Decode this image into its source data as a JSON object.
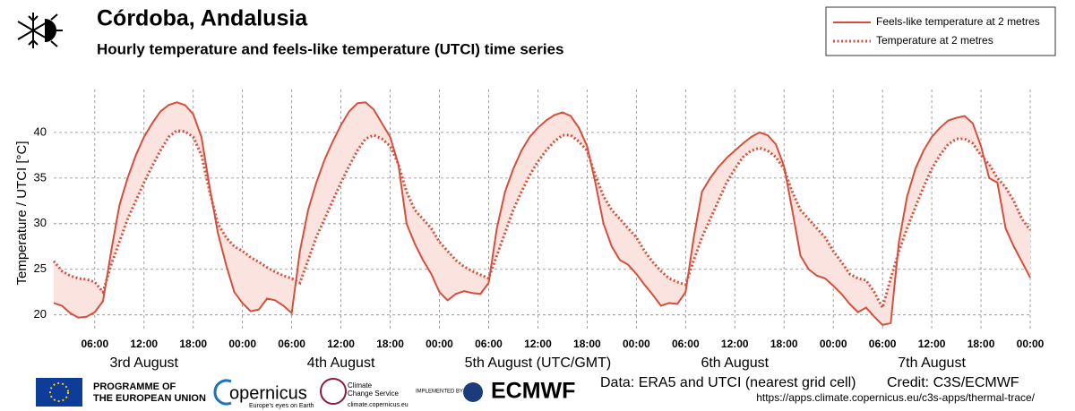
{
  "chart_data": {
    "type": "line",
    "title": "Córdoba, Andalusia",
    "subtitle": "Hourly  temperature and feels-like temperature (UTCI) time series",
    "ylabel": "Temperature / UTCI  [°C]",
    "x": [
      1,
      2,
      3,
      4,
      5,
      6,
      7,
      8,
      9,
      10,
      11,
      12,
      13,
      14,
      15,
      16,
      17,
      18,
      19,
      20,
      21,
      22,
      23,
      24,
      25,
      26,
      27,
      28,
      29,
      30,
      31,
      32,
      33,
      34,
      35,
      36,
      37,
      38,
      39,
      40,
      41,
      42,
      43,
      44,
      45,
      46,
      47,
      48,
      49,
      50,
      51,
      52,
      53,
      54,
      55,
      56,
      57,
      58,
      59,
      60,
      61,
      62,
      63,
      64,
      65,
      66,
      67,
      68,
      69,
      70,
      71,
      72,
      73,
      74,
      75,
      76,
      77,
      78,
      79,
      80,
      81,
      82,
      83,
      84,
      85,
      86,
      87,
      88,
      89,
      90,
      91,
      92,
      93,
      94,
      95,
      96,
      97,
      98,
      99,
      100,
      101,
      102,
      103,
      104,
      105,
      106,
      107,
      108,
      109,
      110,
      111,
      112,
      113,
      114,
      115,
      116,
      117,
      118,
      119,
      120
    ],
    "series": [
      {
        "name": "Feels-like temperature at 2 metres",
        "color": "#d4503c",
        "style": "solid",
        "values": [
          21.3,
          21.0,
          20.2,
          19.7,
          19.8,
          20.3,
          21.5,
          27,
          32,
          35,
          37.5,
          39.5,
          41,
          42.3,
          43,
          43.3,
          43,
          42,
          39.5,
          34,
          29,
          25.5,
          22.5,
          21.3,
          20.4,
          20.6,
          21.8,
          21.6,
          21.0,
          20.2,
          27,
          31.5,
          34.5,
          37,
          39,
          40.8,
          42.3,
          43.2,
          43.3,
          42.5,
          41,
          39.5,
          36.5,
          30,
          27.8,
          26,
          24.5,
          22.5,
          21.6,
          22.3,
          22.6,
          22.4,
          22.3,
          23.5,
          29.5,
          33.5,
          36,
          38,
          39.5,
          40.5,
          41.3,
          41.9,
          42.2,
          41.8,
          40.5,
          38.5,
          34.5,
          30,
          27.5,
          26,
          25.5,
          24.5,
          23.3,
          22.2,
          21,
          21.3,
          21.2,
          22.5,
          28.5,
          33.5,
          35,
          36.2,
          37.2,
          38,
          38.8,
          39.5,
          40,
          39.7,
          38.7,
          36.3,
          31.5,
          26.5,
          25,
          24.3,
          24,
          23.2,
          22.3,
          21.2,
          20.3,
          20.8,
          19.8,
          18.9,
          19.1,
          28,
          33,
          36,
          38,
          39.5,
          40.5,
          41.3,
          41.6,
          41.8,
          41,
          38.5,
          35,
          34.5,
          29.5,
          27.5,
          25.8,
          24.1
        ]
      },
      {
        "name": "Temperature at 2 metres",
        "color": "#d4503c",
        "style": "dotted",
        "values": [
          25.9,
          24.8,
          24.3,
          24.0,
          23.9,
          23.6,
          22.5,
          25.5,
          28,
          30.5,
          32.5,
          34.5,
          36.3,
          38,
          39.5,
          40.2,
          40.1,
          39.5,
          37.5,
          33.5,
          30,
          28.5,
          27.5,
          27,
          26.3,
          25.8,
          25.2,
          24.7,
          24.3,
          24,
          23.5,
          26,
          28.5,
          30.5,
          32.5,
          34.5,
          36.3,
          38,
          39.3,
          39.7,
          39.3,
          38.5,
          36.5,
          33.5,
          31.5,
          30.5,
          29.5,
          28,
          27,
          26,
          25.3,
          24.8,
          24.4,
          24,
          26.5,
          29,
          31.5,
          33.5,
          35.3,
          36.8,
          38,
          39,
          39.7,
          39.7,
          39,
          38,
          35.3,
          33,
          31.5,
          30.5,
          29.5,
          28.5,
          27,
          25.8,
          24.8,
          24,
          23.6,
          23.3,
          26,
          28.5,
          30.5,
          32.5,
          34.5,
          36,
          37.3,
          38,
          38.3,
          38,
          37.3,
          36,
          33.5,
          31.5,
          30.5,
          29.5,
          28.5,
          27,
          25.8,
          24.5,
          24,
          23.8,
          22.5,
          20.8,
          24,
          27,
          29.5,
          31.8,
          34,
          36,
          37.5,
          38.7,
          39.3,
          39.3,
          38.8,
          37.5,
          36.5,
          35,
          34,
          32.5,
          30.5,
          29.3
        ]
      }
    ],
    "fill_color": "#fbe3df",
    "xlim": [
      1,
      120
    ],
    "xticks": [
      {
        "value": 6,
        "label": "06:00"
      },
      {
        "value": 12,
        "label": "12:00"
      },
      {
        "value": 18,
        "label": "18:00"
      },
      {
        "value": 24,
        "label": "00:00"
      },
      {
        "value": 30,
        "label": "06:00"
      },
      {
        "value": 36,
        "label": "12:00"
      },
      {
        "value": 42,
        "label": "18:00"
      },
      {
        "value": 48,
        "label": "00:00"
      },
      {
        "value": 54,
        "label": "06:00"
      },
      {
        "value": 60,
        "label": "12:00"
      },
      {
        "value": 66,
        "label": "18:00"
      },
      {
        "value": 72,
        "label": "00:00"
      },
      {
        "value": 78,
        "label": "06:00"
      },
      {
        "value": 84,
        "label": "12:00"
      },
      {
        "value": 90,
        "label": "18:00"
      },
      {
        "value": 96,
        "label": "00:00"
      },
      {
        "value": 102,
        "label": "06:00"
      },
      {
        "value": 108,
        "label": "12:00"
      },
      {
        "value": 114,
        "label": "18:00"
      },
      {
        "value": 120,
        "label": "00:00"
      }
    ],
    "day_labels": [
      {
        "value": 12,
        "label": "3rd August"
      },
      {
        "value": 36,
        "label": "4th August"
      },
      {
        "value": 60,
        "label": "5th August (UTC/GMT)"
      },
      {
        "value": 84,
        "label": "6th August"
      },
      {
        "value": 108,
        "label": "7th August"
      }
    ],
    "ylim": [
      18.4,
      44.7
    ],
    "yticks": [
      20,
      25,
      30,
      35,
      40
    ],
    "grid": true,
    "legend": "upper right"
  },
  "footer": {
    "eu": [
      "PROGRAMME OF",
      "THE EUROPEAN UNION"
    ],
    "copernicus": "opernicus",
    "copernicus_tag": "Europe's eyes on Earth",
    "c3s": [
      "Climate",
      "Change Service"
    ],
    "c3s_url": "climate.copernicus.eu",
    "implemented": "IMPLEMENTED BY",
    "ecmwf": "ECMWF",
    "data": "Data: ERA5 and UTCI (nearest grid cell)",
    "credit": "Credit: C3S/ECMWF",
    "url": "https://apps.climate.copernicus.eu/c3s-apps/thermal-trace/"
  }
}
